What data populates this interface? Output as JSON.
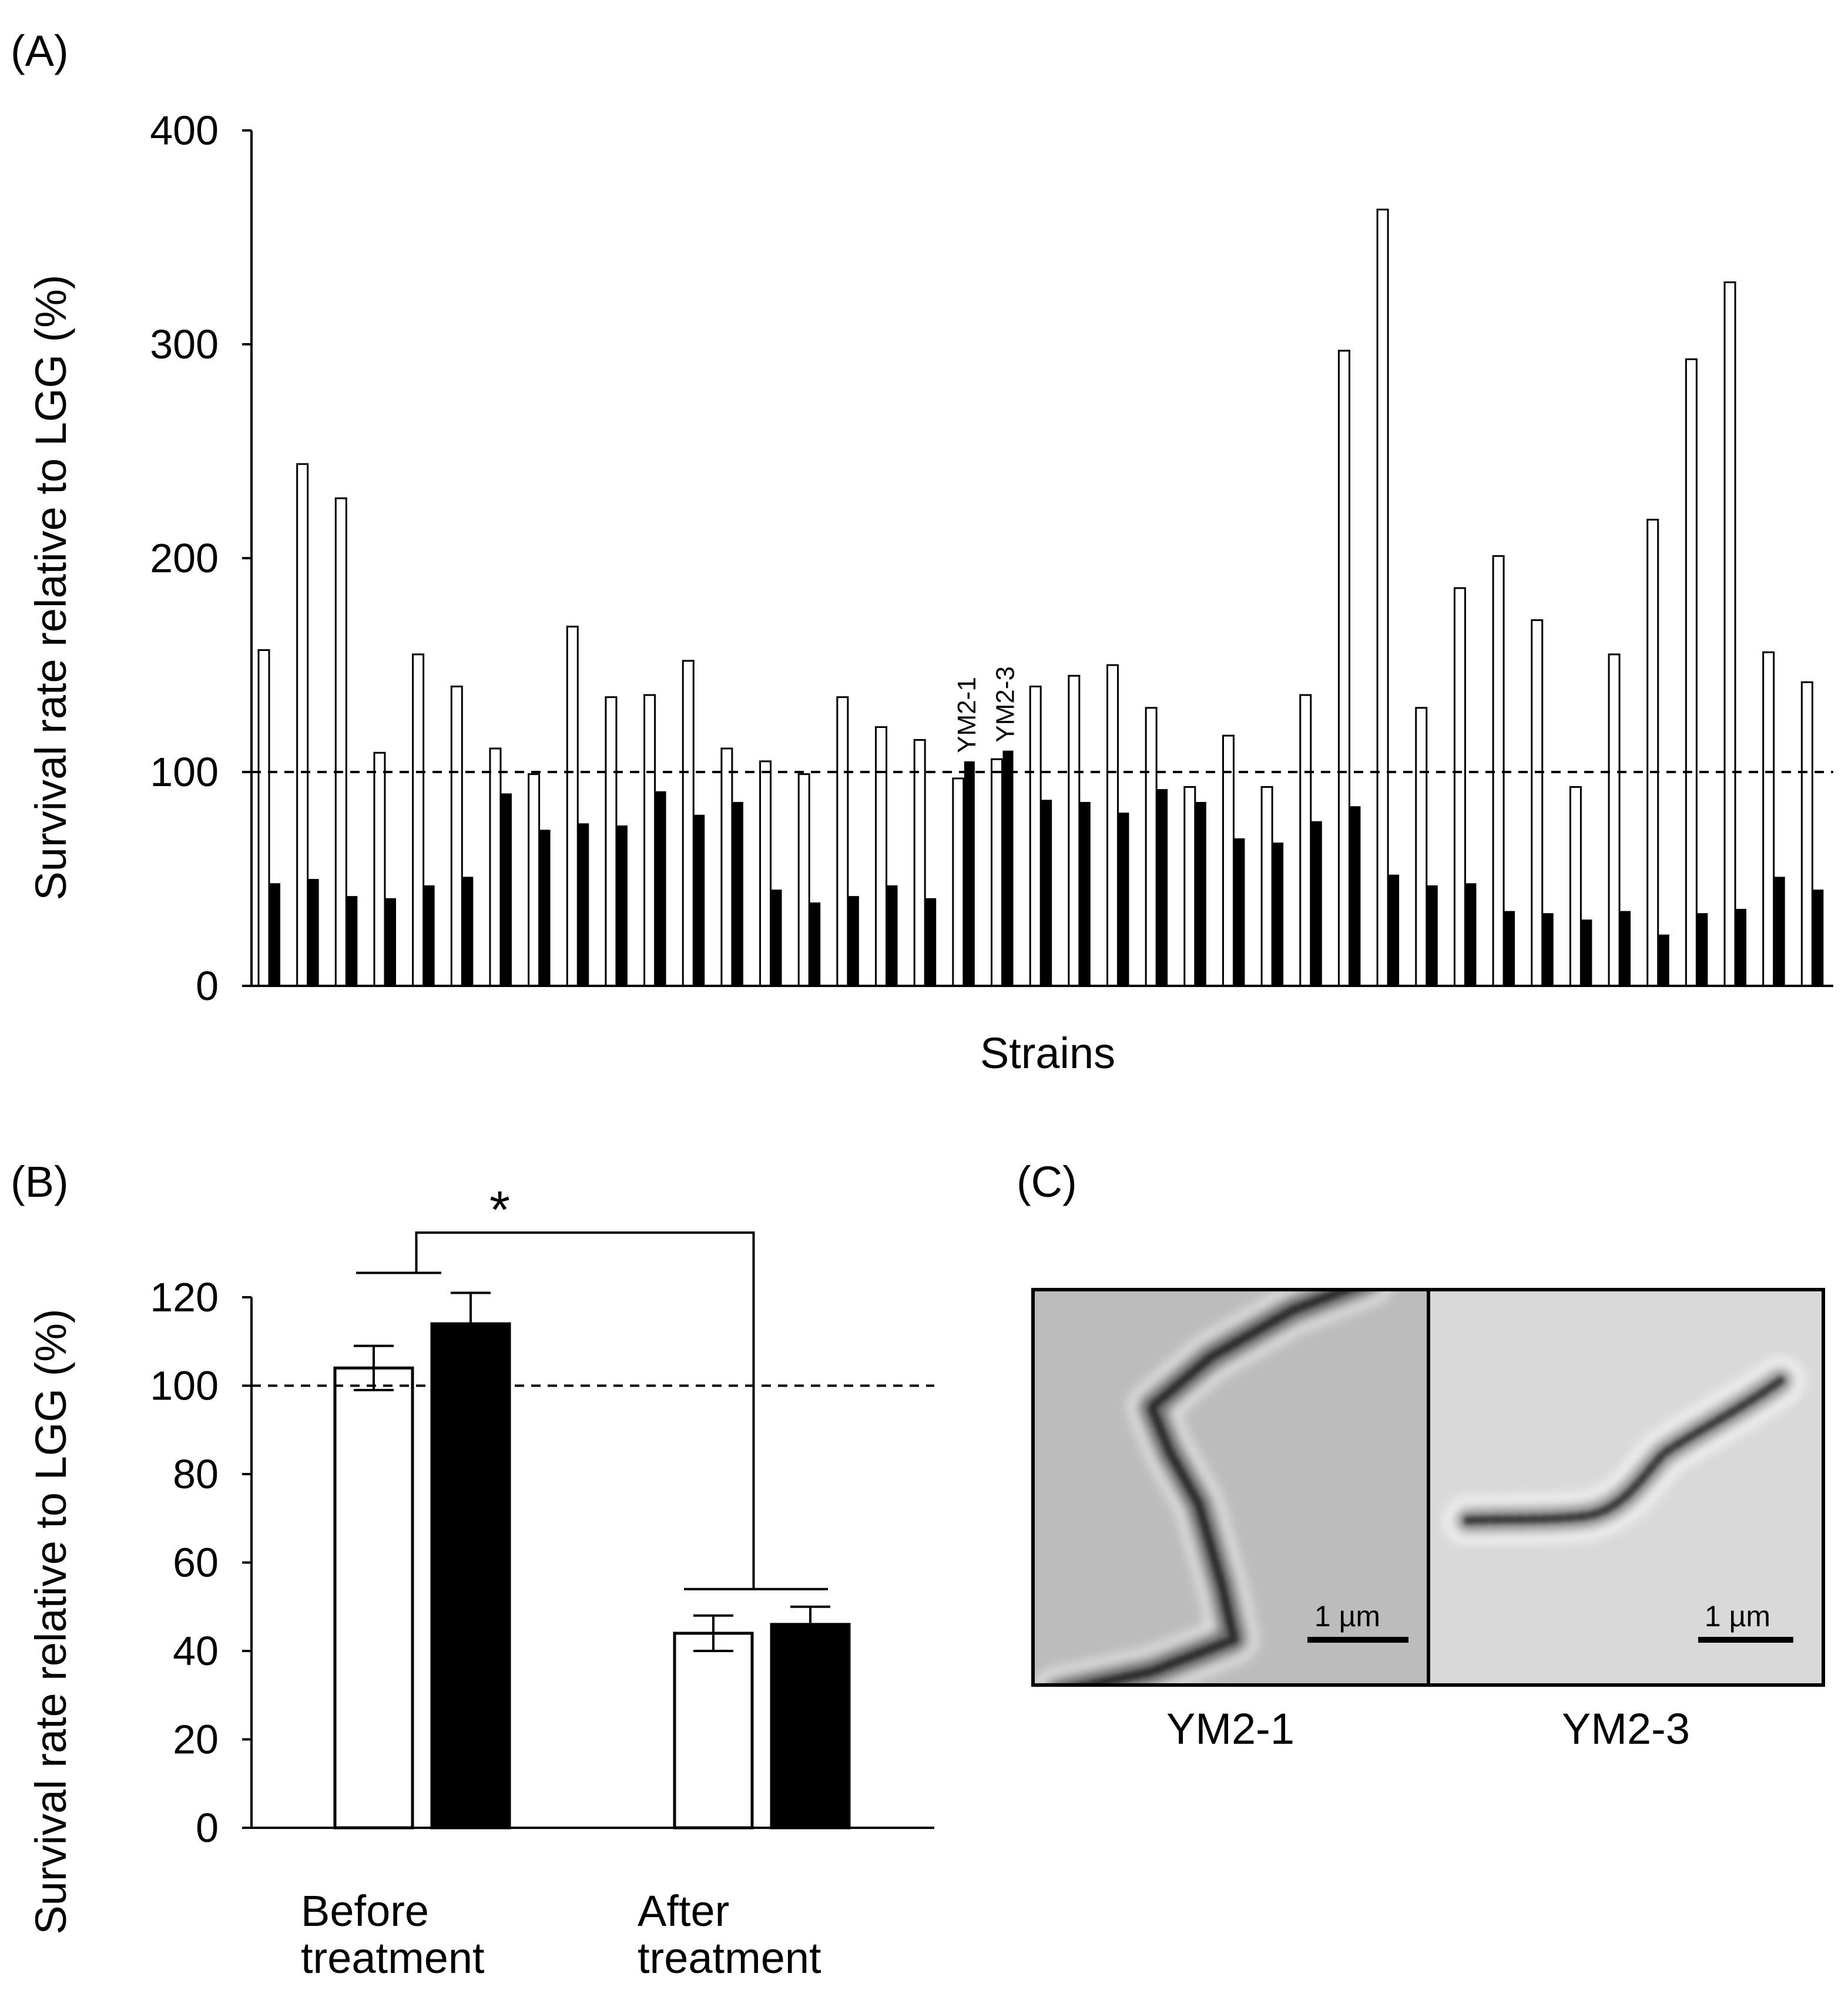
{
  "chart_data": [
    {
      "panel": "(A)",
      "type": "bar",
      "xlabel": "Strains",
      "ylabel": "Survival rate relative to LGG (%)",
      "ylim": [
        0,
        400
      ],
      "yticks": [
        "0",
        "100",
        "200",
        "300",
        "400"
      ],
      "reference_line": 100,
      "reference_style": "dashed",
      "series": [
        {
          "name": "open",
          "values": [
            157,
            244,
            228,
            109,
            155,
            140,
            111,
            99,
            168,
            135,
            136,
            152,
            111,
            105,
            99,
            135,
            121,
            115,
            97,
            106,
            140,
            145,
            150,
            130,
            93,
            117,
            93,
            136,
            297,
            363,
            130,
            186,
            201,
            171,
            93,
            155,
            218,
            293,
            329,
            156,
            142
          ]
        },
        {
          "name": "filled",
          "values": [
            48,
            50,
            42,
            41,
            47,
            51,
            90,
            73,
            76,
            75,
            91,
            80,
            86,
            45,
            39,
            42,
            47,
            41,
            105,
            110,
            87,
            86,
            81,
            92,
            86,
            69,
            67,
            77,
            84,
            52,
            47,
            48,
            35,
            34,
            31,
            35,
            24,
            34,
            36,
            51,
            45
          ]
        }
      ],
      "annotations": [
        {
          "text": "YM2-1",
          "index": 18
        },
        {
          "text": "YM2-3",
          "index": 19
        }
      ]
    },
    {
      "panel": "(B)",
      "type": "bar",
      "categories": [
        "Before treatment",
        "After treatment"
      ],
      "category_lines": [
        [
          "Before",
          "treatment"
        ],
        [
          "After",
          "treatment"
        ]
      ],
      "ylabel": "Survival rate relative to LGG (%)",
      "ylim": [
        0,
        120
      ],
      "yticks": [
        "0",
        "20",
        "40",
        "60",
        "80",
        "100",
        "120"
      ],
      "reference_line": 100,
      "reference_style": "dashed",
      "series": [
        {
          "name": "open",
          "values": [
            104,
            44
          ],
          "errors": [
            5,
            4
          ]
        },
        {
          "name": "filled",
          "values": [
            114,
            46
          ],
          "errors": [
            7,
            4
          ]
        }
      ],
      "significance": "*"
    }
  ],
  "panel_c": {
    "label": "(C)",
    "images": [
      {
        "caption": "YM2-1",
        "scale_bar": "1 µm"
      },
      {
        "caption": "YM2-3",
        "scale_bar": "1 µm"
      }
    ]
  }
}
